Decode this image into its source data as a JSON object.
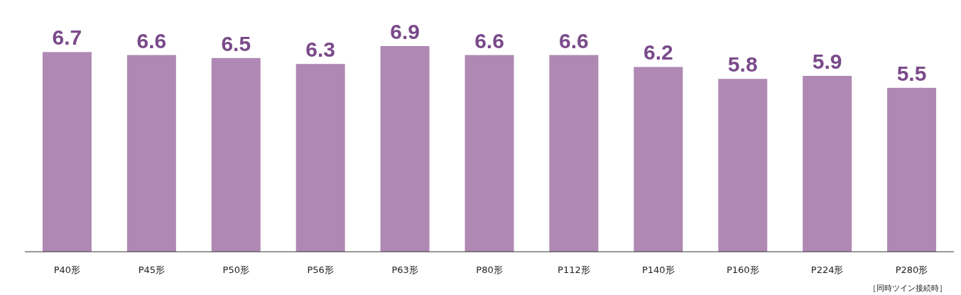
{
  "chart_data": {
    "type": "bar",
    "categories": [
      "P40形",
      "P45形",
      "P50形",
      "P56形",
      "P63形",
      "P80形",
      "P112形",
      "P140形",
      "P160形",
      "P224形",
      "P280形"
    ],
    "values": [
      6.7,
      6.6,
      6.5,
      6.3,
      6.9,
      6.6,
      6.6,
      6.2,
      5.8,
      5.9,
      5.5
    ],
    "color": "#b088b4",
    "data_labels": true,
    "annotations": [
      "［同時ツイン接続時］"
    ]
  }
}
